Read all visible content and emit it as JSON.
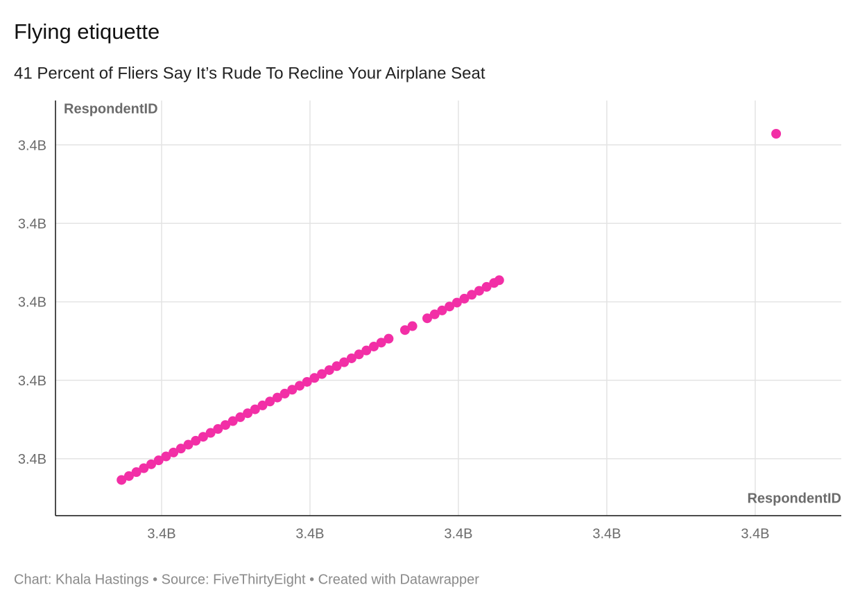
{
  "chart_data": {
    "type": "scatter",
    "title": "Flying etiquette",
    "subtitle": "41 Percent of Fliers Say It’s Rude To Recline Your Airplane Seat",
    "x_label": "RespondentID",
    "y_label": "RespondentID",
    "footer": "Chart: Khala Hastings • Source: FiveThirtyEight • Created with Datawrapper",
    "x": [
      3430730000,
      3430780000,
      3430830000,
      3430880000,
      3430930000,
      3430980000,
      3431030000,
      3431080000,
      3431130000,
      3431180000,
      3431230000,
      3431280000,
      3431330000,
      3431380000,
      3431430000,
      3431480000,
      3431530000,
      3431580000,
      3431630000,
      3431680000,
      3431730000,
      3431780000,
      3431830000,
      3431880000,
      3431930000,
      3431980000,
      3432030000,
      3432080000,
      3432130000,
      3432180000,
      3432230000,
      3432280000,
      3432330000,
      3432380000,
      3432430000,
      3432480000,
      3432530000,
      3432640000,
      3432690000,
      3432790000,
      3432840000,
      3432890000,
      3432940000,
      3432990000,
      3433040000,
      3433090000,
      3433140000,
      3433190000,
      3433240000,
      3433275000,
      3435141000
    ],
    "series": [
      {
        "color": "#f22fa6",
        "values": [
          3430730000,
          3430780000,
          3430830000,
          3430880000,
          3430930000,
          3430980000,
          3431030000,
          3431080000,
          3431130000,
          3431180000,
          3431230000,
          3431280000,
          3431330000,
          3431380000,
          3431430000,
          3431480000,
          3431530000,
          3431580000,
          3431630000,
          3431680000,
          3431730000,
          3431780000,
          3431830000,
          3431880000,
          3431930000,
          3431980000,
          3432030000,
          3432080000,
          3432130000,
          3432180000,
          3432230000,
          3432280000,
          3432330000,
          3432380000,
          3432430000,
          3432480000,
          3432530000,
          3432640000,
          3432690000,
          3432790000,
          3432840000,
          3432890000,
          3432940000,
          3432990000,
          3433040000,
          3433090000,
          3433140000,
          3433190000,
          3433240000,
          3433275000,
          3435141000
        ]
      }
    ],
    "xlim": [
      3430285000,
      3435580000
    ],
    "ylim": [
      3430275000,
      3435565000
    ],
    "xticks": [
      {
        "value": 3431000000,
        "label": "3.4B"
      },
      {
        "value": 3432000000,
        "label": "3.4B"
      },
      {
        "value": 3433000000,
        "label": "3.4B"
      },
      {
        "value": 3434000000,
        "label": "3.4B"
      },
      {
        "value": 3435000000,
        "label": "3.4B"
      }
    ],
    "yticks": [
      {
        "value": 3431000000,
        "label": "3.4B"
      },
      {
        "value": 3432000000,
        "label": "3.4B"
      },
      {
        "value": 3433000000,
        "label": "3.4B"
      },
      {
        "value": 3434000000,
        "label": "3.4B"
      },
      {
        "value": 3435000000,
        "label": "3.4B"
      }
    ],
    "grid": true
  }
}
